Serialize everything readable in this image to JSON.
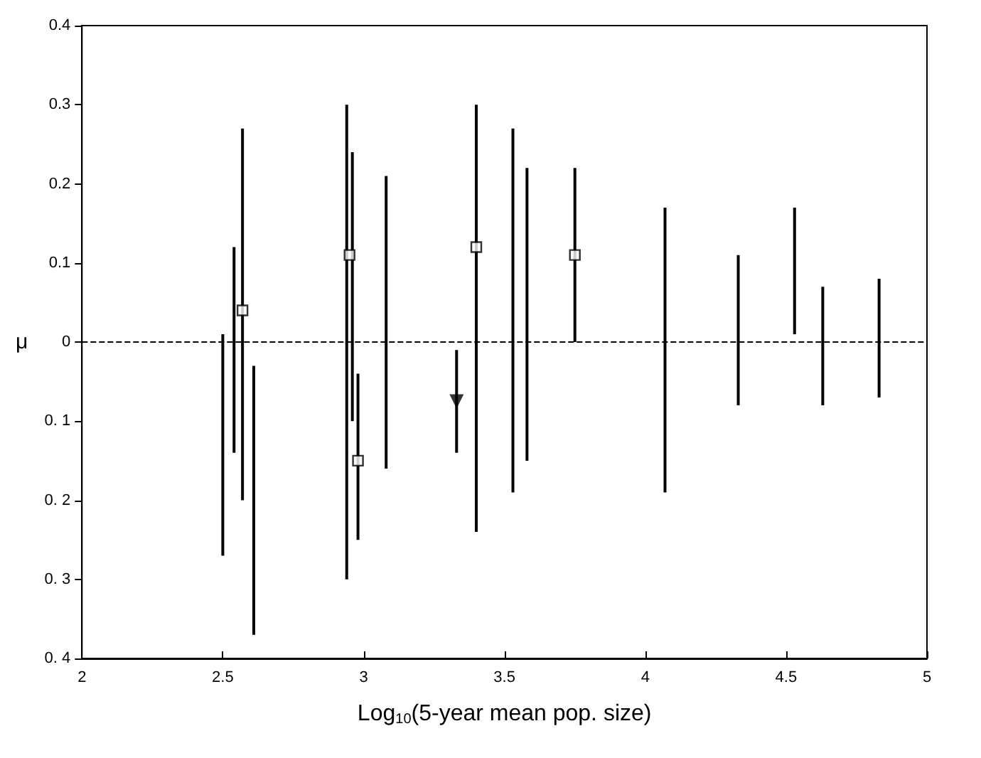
{
  "chart_data": {
    "type": "bar",
    "xlabel": "Log$_{10}$(5-year mean pop. size)",
    "ylabel": "μ",
    "xlim": [
      2,
      5
    ],
    "xticks": [
      2,
      2.5,
      3,
      3.5,
      4,
      4.5,
      5
    ],
    "ylim": [
      -0.4,
      0.4
    ],
    "yticks": [
      {
        "value": -0.4,
        "label": "0. 4"
      },
      {
        "value": -0.3,
        "label": "0. 3"
      },
      {
        "value": -0.2,
        "label": "0. 2"
      },
      {
        "value": -0.1,
        "label": "0. 1"
      },
      0,
      0.1,
      0.2,
      0.3,
      0.4
    ],
    "grid": false,
    "ref_lines": [
      {
        "axis": "y",
        "value": 0,
        "line_style": "dashed",
        "color": "#000000"
      }
    ],
    "series": [
      {
        "color": "#000000",
        "x": [
          2.5,
          2.54,
          2.57,
          2.61,
          2.94,
          2.96,
          2.98,
          3.08,
          3.33,
          3.4,
          3.53,
          3.58,
          3.75,
          4.07,
          4.33,
          4.53,
          4.63,
          4.83
        ],
        "base": [
          -0.27,
          -0.14,
          -0.2,
          -0.37,
          -0.3,
          -0.1,
          -0.25,
          -0.16,
          -0.14,
          -0.24,
          -0.19,
          -0.15,
          0,
          -0.19,
          -0.08,
          0.01,
          -0.08,
          -0.07
        ],
        "values": [
          0.28,
          0.26,
          0.47,
          0.34,
          0.6,
          0.34,
          0.21,
          0.37,
          0.13,
          0.54,
          0.46,
          0.37,
          0.22,
          0.36,
          0.19,
          0.16,
          0.15,
          0.15
        ]
      },
      {
        "type": "scatter",
        "marker": "square",
        "color": "#000000",
        "x": [
          2.57,
          2.95,
          2.98,
          3.4,
          3.75
        ],
        "values": [
          0.04,
          0.11,
          -0.15,
          0.12,
          0.11
        ]
      },
      {
        "type": "scatter",
        "marker": "triangle",
        "color": "#000000",
        "x": [
          3.33
        ],
        "values": [
          -0.075
        ]
      }
    ]
  }
}
